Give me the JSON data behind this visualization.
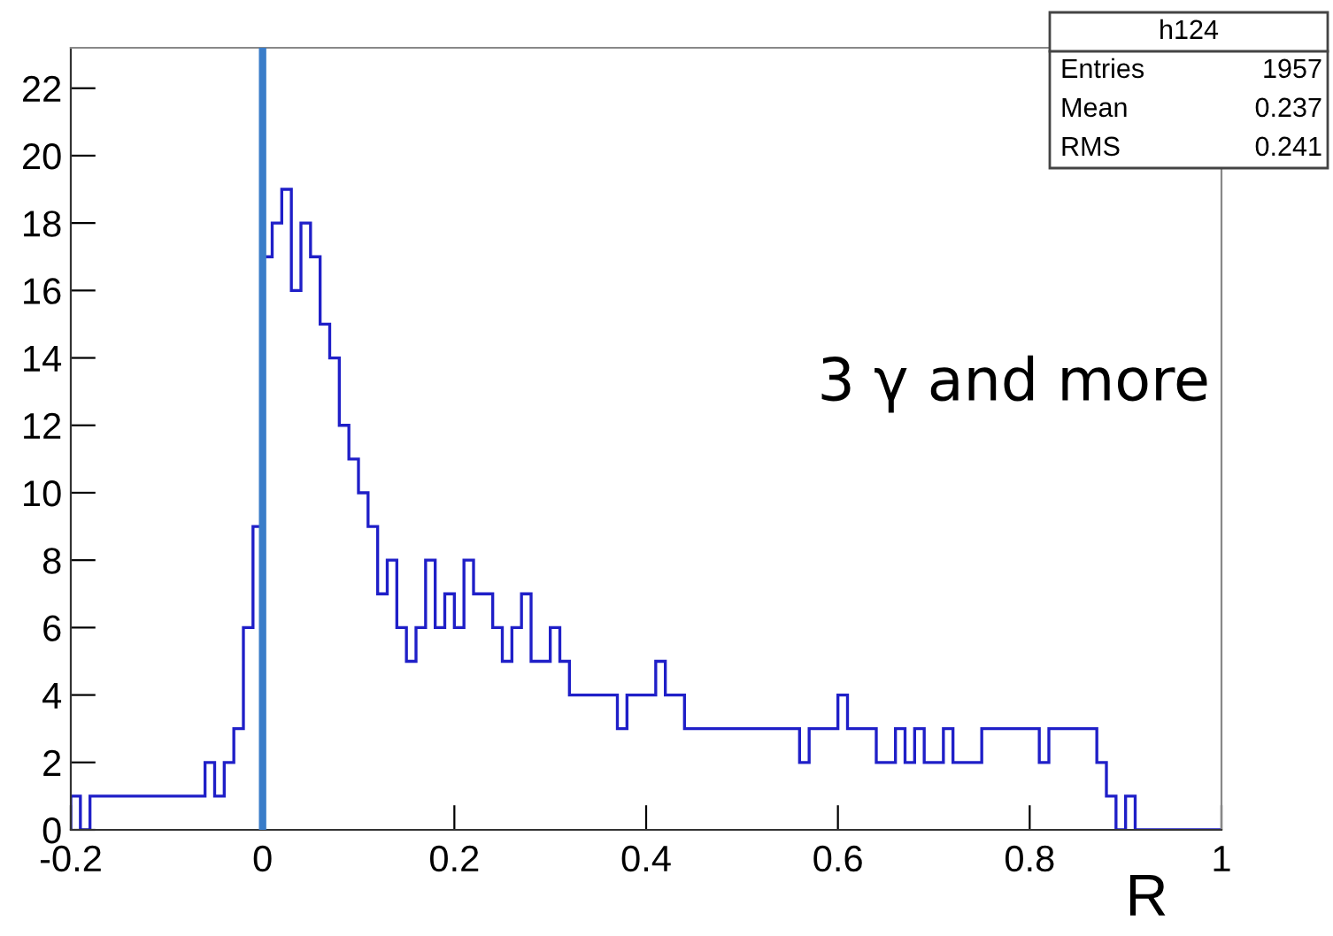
{
  "chart_data": {
    "type": "histogram",
    "bins": [
      -0.2,
      -0.19,
      -0.18,
      -0.17,
      -0.16,
      -0.15,
      -0.14,
      -0.13,
      -0.12,
      -0.11,
      -0.1,
      -0.09,
      -0.08,
      -0.07,
      -0.06,
      -0.05,
      -0.04,
      -0.03,
      -0.02,
      -0.01,
      0,
      0.01,
      0.02,
      0.03,
      0.04,
      0.05,
      0.06,
      0.07,
      0.08,
      0.09,
      0.1,
      0.11,
      0.12,
      0.13,
      0.14,
      0.15,
      0.16,
      0.17,
      0.18,
      0.19,
      0.2,
      0.21,
      0.22,
      0.23,
      0.24,
      0.25,
      0.26,
      0.27,
      0.28,
      0.29,
      0.3,
      0.31,
      0.32,
      0.33,
      0.34,
      0.35,
      0.36,
      0.37,
      0.38,
      0.39,
      0.4,
      0.41,
      0.42,
      0.43,
      0.44,
      0.45,
      0.46,
      0.47,
      0.48,
      0.49,
      0.5,
      0.51,
      0.52,
      0.53,
      0.54,
      0.55,
      0.56,
      0.57,
      0.58,
      0.59,
      0.6,
      0.61,
      0.62,
      0.63,
      0.64,
      0.65,
      0.66,
      0.67,
      0.68,
      0.69,
      0.7,
      0.71,
      0.72,
      0.73,
      0.74,
      0.75,
      0.76,
      0.77,
      0.78,
      0.79,
      0.8,
      0.81,
      0.82,
      0.83,
      0.84,
      0.85,
      0.86,
      0.87,
      0.88,
      0.89,
      0.9,
      0.91,
      0.92,
      0.93,
      0.94,
      0.95,
      0.96,
      0.97,
      0.98,
      0.99,
      1.0
    ],
    "values": [
      1,
      0,
      1,
      1,
      1,
      1,
      1,
      1,
      1,
      1,
      1,
      1,
      1,
      1,
      2,
      1,
      2,
      3,
      6,
      9,
      17,
      18,
      19,
      16,
      18,
      17,
      15,
      14,
      12,
      11,
      10,
      9,
      7,
      8,
      6,
      5,
      6,
      8,
      6,
      7,
      6,
      8,
      7,
      7,
      6,
      5,
      6,
      7,
      5,
      5,
      6,
      5,
      4,
      4,
      4,
      4,
      4,
      3,
      4,
      4,
      4,
      5,
      4,
      4,
      3,
      3,
      3,
      3,
      3,
      3,
      3,
      3,
      3,
      3,
      3,
      3,
      2,
      3,
      3,
      3,
      4,
      3,
      3,
      3,
      2,
      2,
      3,
      2,
      3,
      2,
      2,
      3,
      2,
      2,
      2,
      3,
      3,
      3,
      3,
      3,
      3,
      2,
      3,
      3,
      3,
      3,
      3,
      2,
      1,
      0,
      1,
      0,
      0,
      0,
      0,
      0,
      0,
      0,
      0,
      0
    ],
    "color": "#1f1fc8",
    "xlabel": "R",
    "xlim": [
      -0.2,
      1
    ],
    "ylim": [
      0,
      23.2
    ],
    "xticks": [
      -0.2,
      0,
      0.2,
      0.4,
      0.6,
      0.8,
      1
    ],
    "yticks": [
      0,
      2,
      4,
      6,
      8,
      10,
      12,
      14,
      16,
      18,
      20,
      22
    ],
    "ref_lines": [
      {
        "axis": "x",
        "value": 0,
        "color": "#3a7dc9"
      }
    ],
    "annotations": [
      "h124",
      "Entries",
      "1957",
      "Mean",
      "0.237",
      "RMS",
      "0.241",
      "3 γ and more"
    ],
    "grid": false,
    "legend": false
  }
}
